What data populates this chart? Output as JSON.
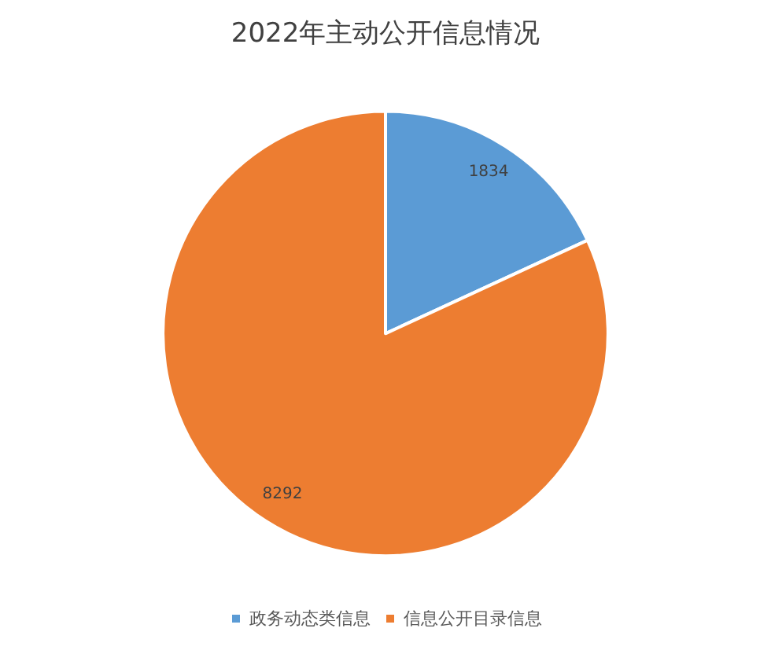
{
  "chart_data": {
    "type": "pie",
    "title": "2022年主动公开信息情况",
    "categories": [
      "政务动态类信息",
      "信息公开目录信息"
    ],
    "values": [
      1834,
      8292
    ],
    "colors": [
      "#5b9bd5",
      "#ed7d31"
    ],
    "data_labels": true,
    "legend": "bottom"
  }
}
